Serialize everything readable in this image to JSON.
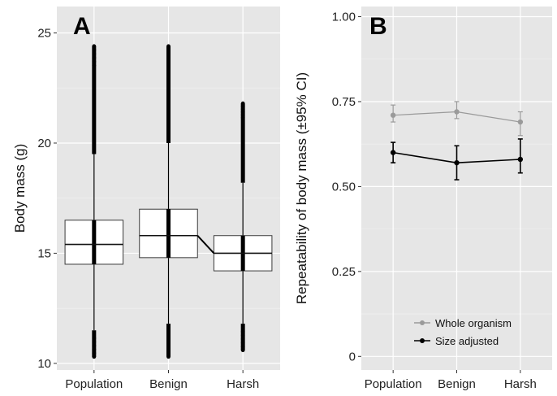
{
  "chart_data": [
    {
      "panel": "A",
      "type": "box",
      "categories": [
        "Population",
        "Benign",
        "Harsh"
      ],
      "xlabel": "",
      "ylabel": "Body mass (g)",
      "ylim": [
        9.7,
        26.2
      ],
      "yticks": [
        10,
        15,
        20,
        25
      ],
      "grid": true,
      "boxes": [
        {
          "category": "Population",
          "q1": 14.5,
          "median": 15.4,
          "q3": 16.5,
          "whisker_low": 11.5,
          "whisker_high": 19.5,
          "min": 10.3,
          "max": 24.4
        },
        {
          "category": "Benign",
          "q1": 14.8,
          "median": 15.8,
          "q3": 17.0,
          "whisker_low": 11.8,
          "whisker_high": 20.0,
          "min": 10.3,
          "max": 24.4
        },
        {
          "category": "Harsh",
          "q1": 14.2,
          "median": 15.0,
          "q3": 15.8,
          "whisker_low": 11.8,
          "whisker_high": 18.2,
          "min": 10.6,
          "max": 21.8
        }
      ],
      "median_connector": [
        "Benign",
        "Harsh"
      ]
    },
    {
      "panel": "B",
      "type": "line",
      "categories": [
        "Population",
        "Benign",
        "Harsh"
      ],
      "xlabel": "",
      "ylabel": "Repeatability of body mass (±95% CI)",
      "ylim": [
        -0.04,
        1.03
      ],
      "yticks": [
        0,
        0.25,
        0.5,
        0.75,
        1.0
      ],
      "ytick_labels": [
        "0",
        "0.25",
        "0.50",
        "0.75",
        "1.00"
      ],
      "grid": true,
      "legend_position": "bottom-right",
      "series": [
        {
          "name": "Whole organism",
          "color": "#9a9a9a",
          "values": [
            0.71,
            0.72,
            0.69
          ],
          "ci_low": [
            0.69,
            0.7,
            0.65
          ],
          "ci_high": [
            0.74,
            0.75,
            0.72
          ]
        },
        {
          "name": "Size adjusted",
          "color": "#000000",
          "values": [
            0.6,
            0.57,
            0.58
          ],
          "ci_low": [
            0.57,
            0.52,
            0.54
          ],
          "ci_high": [
            0.63,
            0.62,
            0.64
          ]
        }
      ]
    }
  ]
}
